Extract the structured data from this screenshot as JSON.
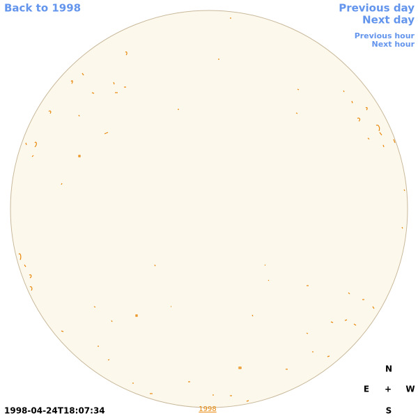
{
  "nav": {
    "back": "Back to 1998",
    "previous_day": "Previous day",
    "next_day": "Next day",
    "previous_hour": "Previous hour",
    "next_hour": "Next hour"
  },
  "compass": {
    "north": "N",
    "east": "E",
    "center": "+",
    "west": "W",
    "south": "S"
  },
  "timestamp": "1998-04-24T18:07:34",
  "year_link": "1998"
}
